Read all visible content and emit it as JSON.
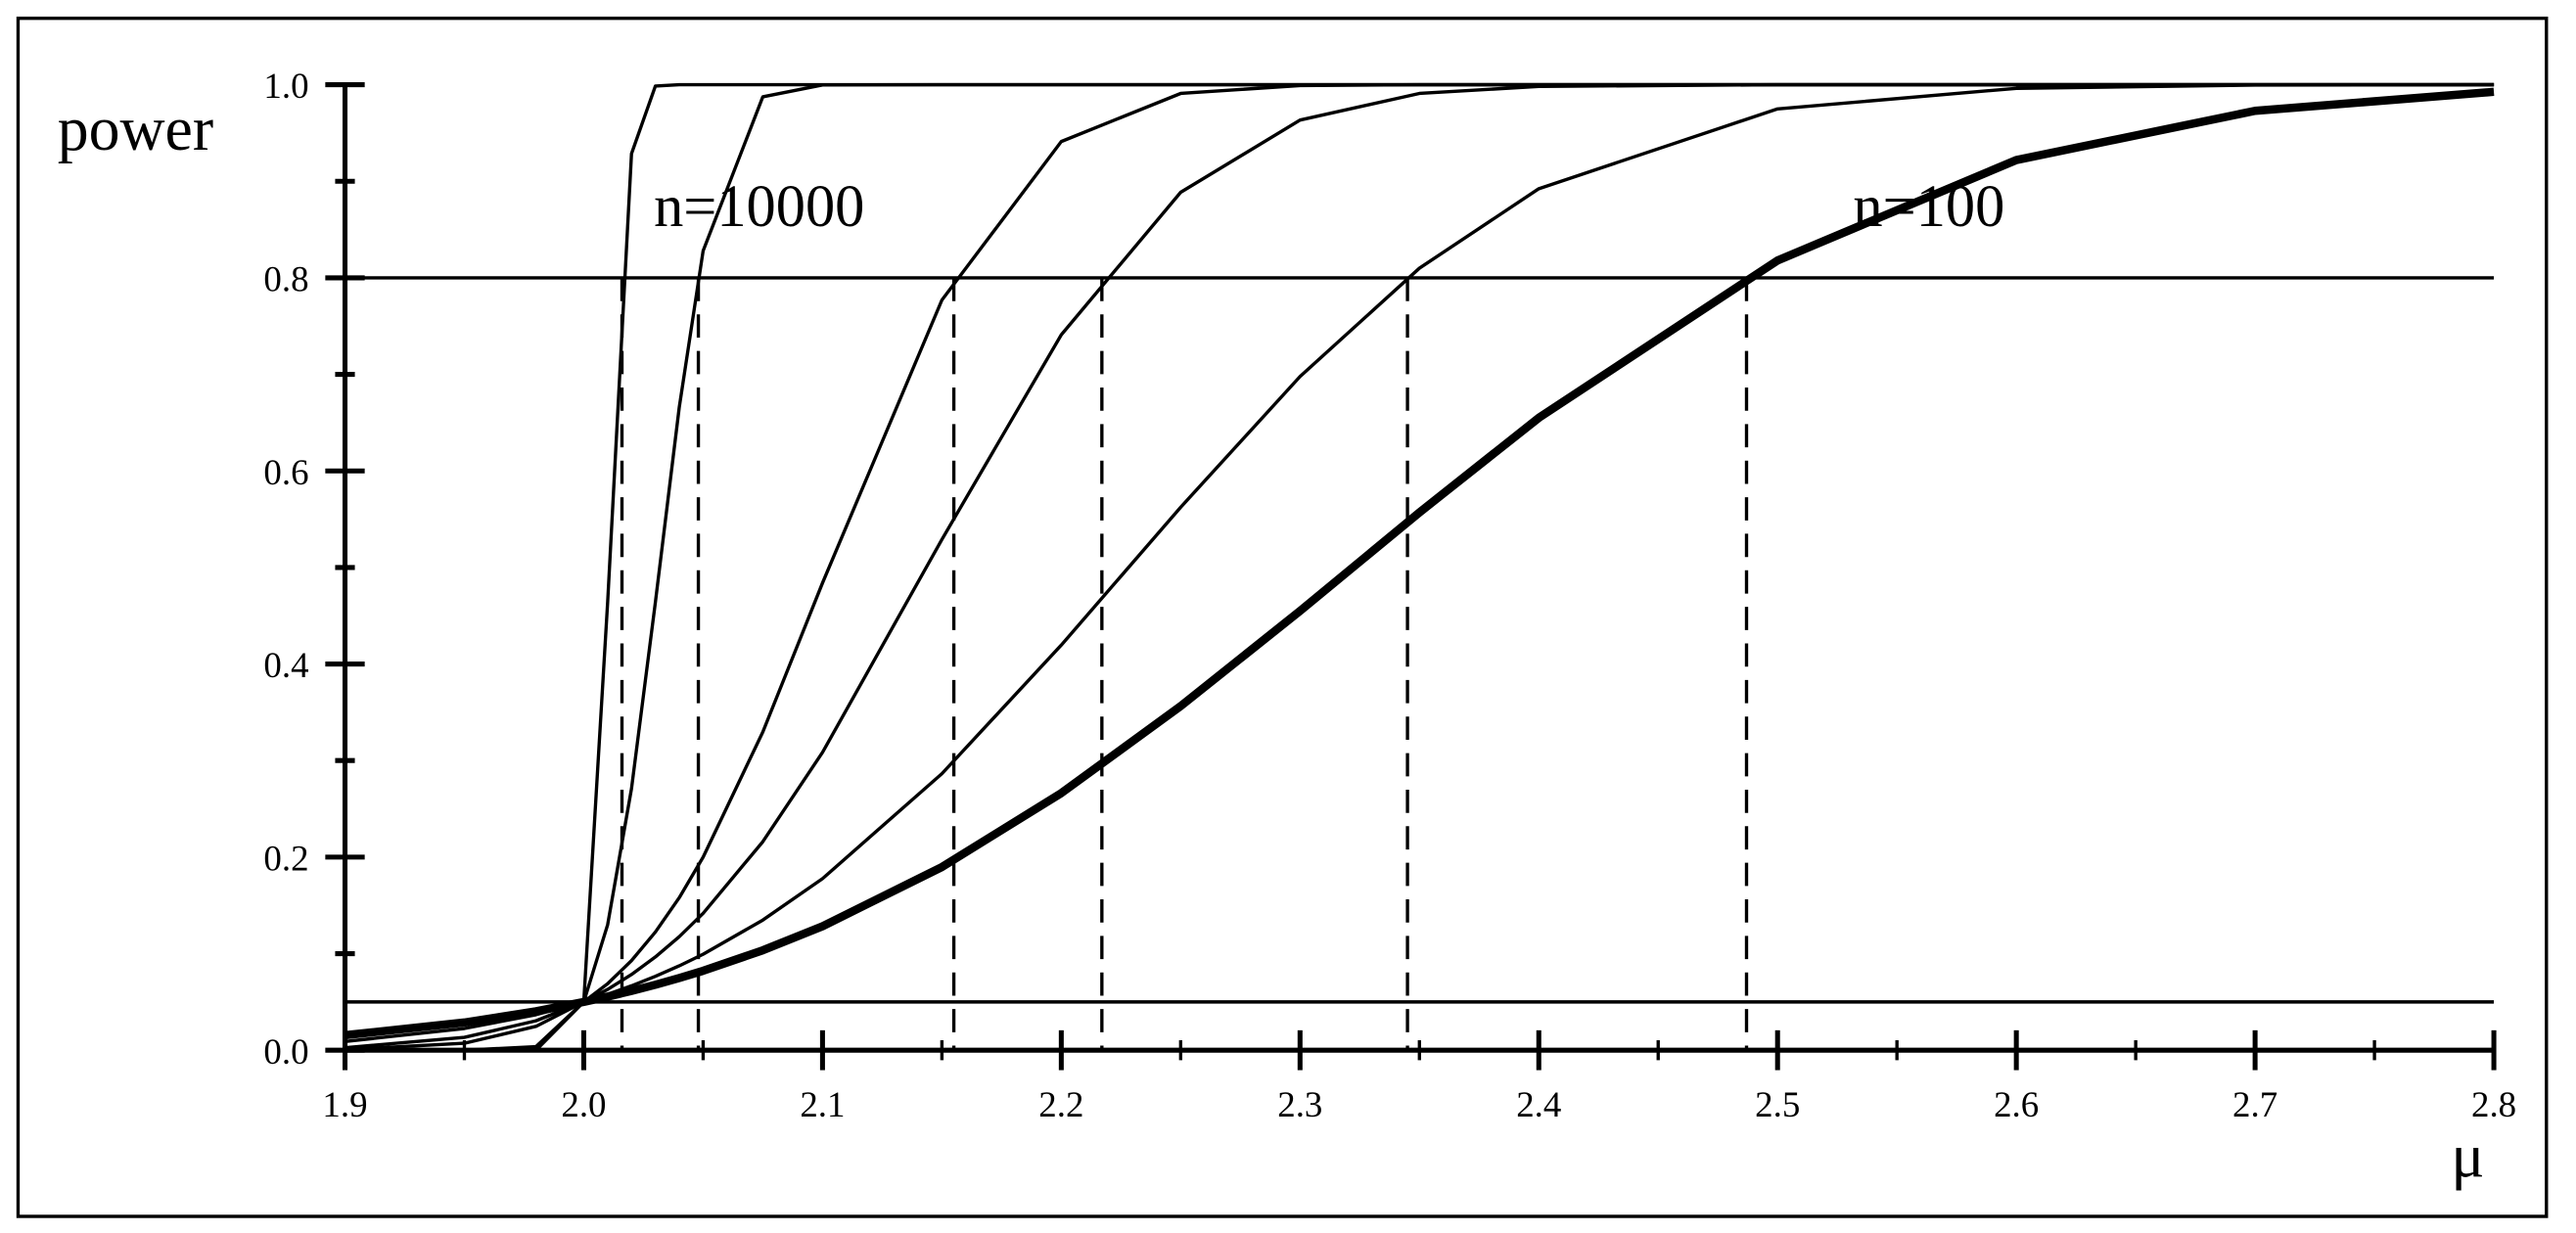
{
  "chart_data": {
    "type": "line",
    "y_label": "power",
    "x_label": "μ",
    "annotations": [
      "n=10000",
      "n=100"
    ],
    "x": [
      1.9,
      1.95,
      1.98,
      2.0,
      2.01,
      2.02,
      2.03,
      2.04,
      2.05,
      2.075,
      2.1,
      2.15,
      2.2,
      2.25,
      2.3,
      2.35,
      2.4,
      2.5,
      2.6,
      2.7,
      2.8
    ],
    "series": [
      {
        "color": "#000000",
        "width": 5,
        "values": [
          0.0155,
          0.0287,
          0.0403,
          0.05,
          0.0555,
          0.0614,
          0.0678,
          0.0748,
          0.0823,
          0.1035,
          0.1284,
          0.1897,
          0.2663,
          0.3564,
          0.455,
          0.557,
          0.655,
          0.818,
          0.922,
          0.973,
          0.9927
        ]
      },
      {
        "color": "#000000",
        "width": 2,
        "values": [
          0.009,
          0.0225,
          0.0368,
          0.05,
          0.0579,
          0.0667,
          0.0765,
          0.0874,
          0.0994,
          0.1348,
          0.1777,
          0.2864,
          0.4196,
          0.5624,
          0.6978,
          0.81,
          0.8923,
          0.975,
          0.9963,
          0.9997,
          1
        ]
      },
      {
        "color": "#000000",
        "width": 2,
        "values": [
          0.0026,
          0.0133,
          0.0305,
          0.05,
          0.063,
          0.0784,
          0.0966,
          0.1176,
          0.1418,
          0.216,
          0.3085,
          0.529,
          0.741,
          0.8886,
          0.9634,
          0.991,
          0.9983,
          1,
          1,
          1,
          1
        ]
      },
      {
        "color": "#000000",
        "width": 2,
        "values": [
          0.0006,
          0.0072,
          0.0247,
          0.05,
          0.0689,
          0.0928,
          0.1224,
          0.158,
          0.2,
          0.3296,
          0.484,
          0.777,
          0.9412,
          0.991,
          0.9992,
          1,
          1,
          1,
          1,
          1,
          1
        ]
      },
      {
        "color": "#000000",
        "width": 2,
        "values": [
          0,
          0,
          0.0037,
          0.05,
          0.13,
          0.271,
          0.464,
          0.666,
          0.828,
          0.9875,
          0.9998,
          1,
          1,
          1,
          1,
          1,
          1,
          1,
          1,
          1,
          1
        ]
      },
      {
        "color": "#000000",
        "width": 2,
        "values": [
          0,
          0,
          0,
          0.05,
          0.464,
          0.9286,
          0.9987,
          1,
          1,
          1,
          1,
          1,
          1,
          1,
          1,
          1,
          1,
          1,
          1,
          1,
          1
        ]
      }
    ],
    "hlines": [
      0.8,
      0.05
    ],
    "vlines": [
      2.016,
      2.048,
      2.155,
      2.217,
      2.345,
      2.487
    ],
    "xlim": [
      1.9,
      2.8
    ],
    "ylim": [
      0,
      1
    ],
    "xticks": [
      1.9,
      {
        "value": 2,
        "label": "2.0"
      },
      2.1,
      2.2,
      2.3,
      2.4,
      2.5,
      2.6,
      2.7,
      2.8
    ],
    "xminorticks": [
      1.95,
      2.05,
      2.15,
      2.25,
      2.35,
      2.45,
      2.55,
      2.65,
      2.75
    ],
    "yticks": [
      {
        "value": 0,
        "label": "0.0"
      },
      0.2,
      0.4,
      0.6,
      0.8,
      {
        "value": 1,
        "label": "1.0"
      }
    ],
    "yminorticks": [
      0.1,
      0.3,
      0.5,
      0.7,
      0.9
    ]
  }
}
